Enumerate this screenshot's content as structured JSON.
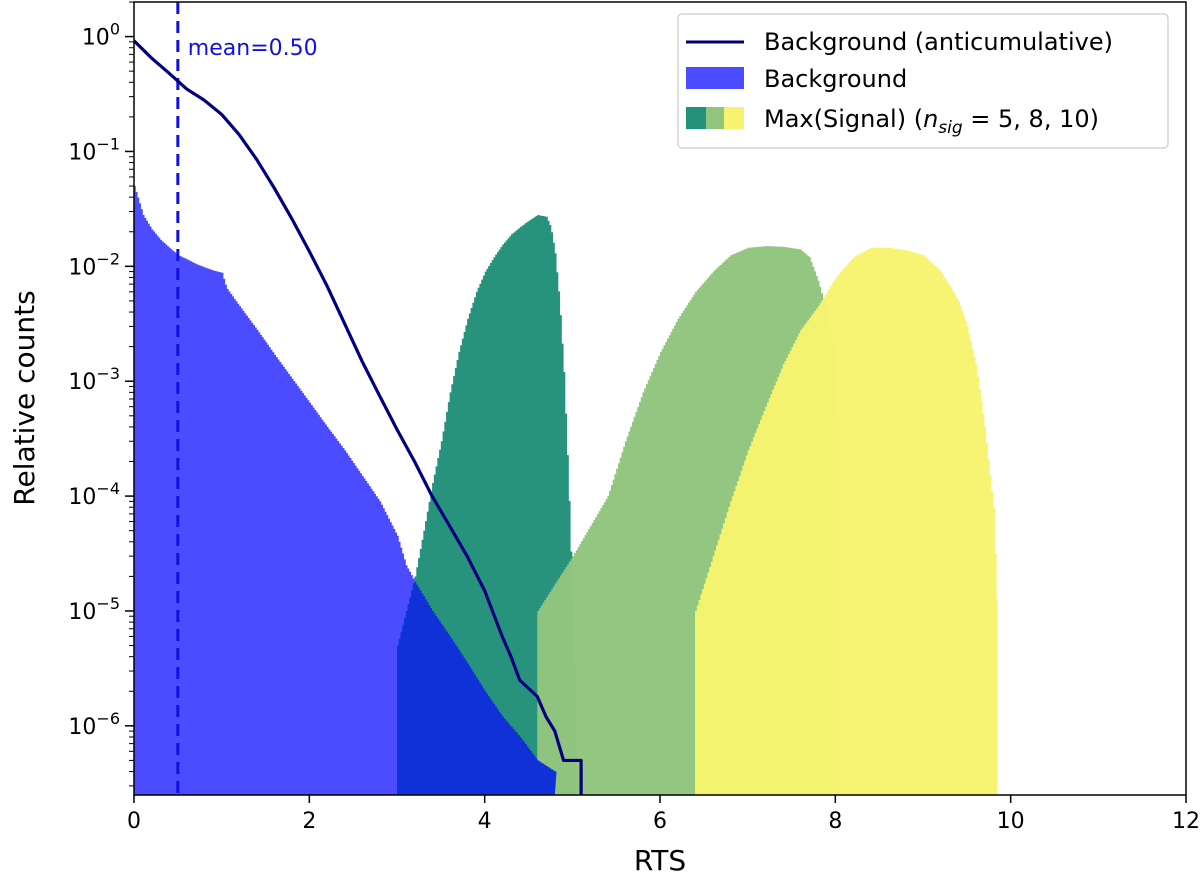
{
  "chart_data": {
    "type": "bar",
    "xlabel": "RTS",
    "ylabel": "Relative counts",
    "xlim": [
      0,
      12
    ],
    "ylim": [
      2.5e-07,
      2
    ],
    "yscale": "log",
    "x_ticks": [
      0,
      2,
      4,
      6,
      8,
      10,
      12
    ],
    "y_ticks": [
      {
        "value": 1,
        "base": "10",
        "exp": "0"
      },
      {
        "value": 0.1,
        "base": "10",
        "exp": "−1"
      },
      {
        "value": 0.01,
        "base": "10",
        "exp": "−2"
      },
      {
        "value": 0.001,
        "base": "10",
        "exp": "−3"
      },
      {
        "value": 0.0001,
        "base": "10",
        "exp": "−4"
      },
      {
        "value": 1e-05,
        "base": "10",
        "exp": "−5"
      },
      {
        "value": 1e-06,
        "base": "10",
        "exp": "−6"
      }
    ],
    "grid": false,
    "legend_position": "top-right",
    "colors": {
      "background_hist": "#4b4bff",
      "background_line": "#00007f",
      "mean_line": "#1010e0",
      "sig5": "#24917a",
      "sig8": "#91c57e",
      "sig10": "#f6f46f"
    },
    "annotation": {
      "text": "mean=0.50",
      "x": 0.5
    },
    "legend": [
      {
        "label": "Background (anticumulative)",
        "kind": "line"
      },
      {
        "label": "Background",
        "kind": "patch"
      },
      {
        "label": "Max(Signal) (",
        "math_n": "n",
        "math_sub": "sig",
        "math_rest": " = 5, 8, 10)",
        "kind": "multi-patch"
      }
    ],
    "series": [
      {
        "name": "Background",
        "kind": "histogram",
        "color_key": "background_hist",
        "points": [
          [
            0.0,
            0.05
          ],
          [
            0.1,
            0.028
          ],
          [
            0.2,
            0.021
          ],
          [
            0.3,
            0.017
          ],
          [
            0.4,
            0.0145
          ],
          [
            0.5,
            0.0125
          ],
          [
            0.6,
            0.0115
          ],
          [
            0.7,
            0.0105
          ],
          [
            0.8,
            0.0098
          ],
          [
            0.9,
            0.0092
          ],
          [
            1.0,
            0.0088
          ],
          [
            1.05,
            0.0065
          ],
          [
            1.2,
            0.0045
          ],
          [
            1.4,
            0.0028
          ],
          [
            1.6,
            0.0017
          ],
          [
            1.8,
            0.00105
          ],
          [
            2.0,
            0.00065
          ],
          [
            2.2,
            0.0004
          ],
          [
            2.4,
            0.00025
          ],
          [
            2.6,
            0.00015
          ],
          [
            2.8,
            9e-05
          ],
          [
            3.0,
            4.5e-05
          ],
          [
            3.1,
            2.5e-05
          ],
          [
            3.2,
            1.8e-05
          ],
          [
            3.4,
            1e-05
          ],
          [
            3.6,
            6e-06
          ],
          [
            3.8,
            3.5e-06
          ],
          [
            4.0,
            2e-06
          ],
          [
            4.2,
            1.2e-06
          ],
          [
            4.4,
            8e-07
          ],
          [
            4.6,
            5e-07
          ],
          [
            4.8,
            4e-07
          ]
        ]
      },
      {
        "name": "Max(Signal) n_sig=5",
        "kind": "histogram",
        "color_key": "sig5",
        "points": [
          [
            3.0,
            5e-06
          ],
          [
            3.2,
            2e-05
          ],
          [
            3.3,
            5e-05
          ],
          [
            3.4,
            0.00013
          ],
          [
            3.5,
            0.0003
          ],
          [
            3.6,
            0.0008
          ],
          [
            3.7,
            0.0018
          ],
          [
            3.8,
            0.0035
          ],
          [
            3.9,
            0.006
          ],
          [
            4.0,
            0.009
          ],
          [
            4.1,
            0.012
          ],
          [
            4.2,
            0.0155
          ],
          [
            4.3,
            0.019
          ],
          [
            4.4,
            0.022
          ],
          [
            4.5,
            0.025
          ],
          [
            4.6,
            0.028
          ],
          [
            4.7,
            0.027
          ],
          [
            4.75,
            0.022
          ],
          [
            4.8,
            0.013
          ],
          [
            4.85,
            0.005
          ],
          [
            4.9,
            0.0012
          ],
          [
            4.95,
            0.00015
          ],
          [
            5.0,
            1.2e-05
          ],
          [
            5.05,
            5e-07
          ]
        ]
      },
      {
        "name": "Max(Signal) n_sig=8",
        "kind": "histogram",
        "color_key": "sig8",
        "points": [
          [
            4.6,
            1e-05
          ],
          [
            5.0,
            3e-05
          ],
          [
            5.4,
            0.0001
          ],
          [
            5.6,
            0.0003
          ],
          [
            5.8,
            0.0008
          ],
          [
            6.0,
            0.0018
          ],
          [
            6.2,
            0.0035
          ],
          [
            6.4,
            0.006
          ],
          [
            6.6,
            0.009
          ],
          [
            6.8,
            0.0125
          ],
          [
            7.0,
            0.0145
          ],
          [
            7.2,
            0.015
          ],
          [
            7.4,
            0.0148
          ],
          [
            7.6,
            0.014
          ],
          [
            7.7,
            0.012
          ],
          [
            7.8,
            0.0075
          ],
          [
            7.9,
            0.004
          ],
          [
            7.95,
            0.0025
          ],
          [
            8.0,
            0.0018
          ],
          [
            8.05,
            9e-05
          ]
        ]
      },
      {
        "name": "Max(Signal) n_sig=10",
        "kind": "histogram",
        "color_key": "sig10",
        "points": [
          [
            6.4,
            1e-05
          ],
          [
            6.6,
            3e-05
          ],
          [
            6.8,
            9e-05
          ],
          [
            7.0,
            0.00025
          ],
          [
            7.2,
            0.0006
          ],
          [
            7.4,
            0.0014
          ],
          [
            7.6,
            0.0028
          ],
          [
            7.8,
            0.0045
          ],
          [
            8.0,
            0.008
          ],
          [
            8.2,
            0.012
          ],
          [
            8.4,
            0.0145
          ],
          [
            8.6,
            0.0145
          ],
          [
            8.8,
            0.0138
          ],
          [
            9.0,
            0.0125
          ],
          [
            9.2,
            0.009
          ],
          [
            9.4,
            0.005
          ],
          [
            9.5,
            0.003
          ],
          [
            9.6,
            0.0014
          ],
          [
            9.7,
            0.0004
          ],
          [
            9.8,
            8e-05
          ],
          [
            9.85,
            8e-06
          ]
        ]
      },
      {
        "name": "Background (anticumulative)",
        "kind": "line",
        "color_key": "background_line",
        "points": [
          [
            0.0,
            0.92
          ],
          [
            0.2,
            0.65
          ],
          [
            0.4,
            0.48
          ],
          [
            0.6,
            0.35
          ],
          [
            0.8,
            0.28
          ],
          [
            1.0,
            0.21
          ],
          [
            1.2,
            0.14
          ],
          [
            1.4,
            0.085
          ],
          [
            1.6,
            0.048
          ],
          [
            1.8,
            0.026
          ],
          [
            2.0,
            0.0135
          ],
          [
            2.2,
            0.0068
          ],
          [
            2.4,
            0.0032
          ],
          [
            2.6,
            0.0015
          ],
          [
            2.8,
            0.00075
          ],
          [
            3.0,
            0.00038
          ],
          [
            3.2,
            0.0002
          ],
          [
            3.4,
            0.0001
          ],
          [
            3.6,
            5.5e-05
          ],
          [
            3.8,
            3e-05
          ],
          [
            4.0,
            1.5e-05
          ],
          [
            4.1,
            9.5e-06
          ],
          [
            4.2,
            6e-06
          ],
          [
            4.3,
            4e-06
          ],
          [
            4.4,
            2.5e-06
          ],
          [
            4.6,
            1.8e-06
          ],
          [
            4.7,
            1.2e-06
          ],
          [
            4.8,
            9e-07
          ],
          [
            4.9,
            5e-07
          ],
          [
            5.1,
            5e-07
          ],
          [
            5.1,
            2.5e-07
          ]
        ]
      }
    ]
  }
}
